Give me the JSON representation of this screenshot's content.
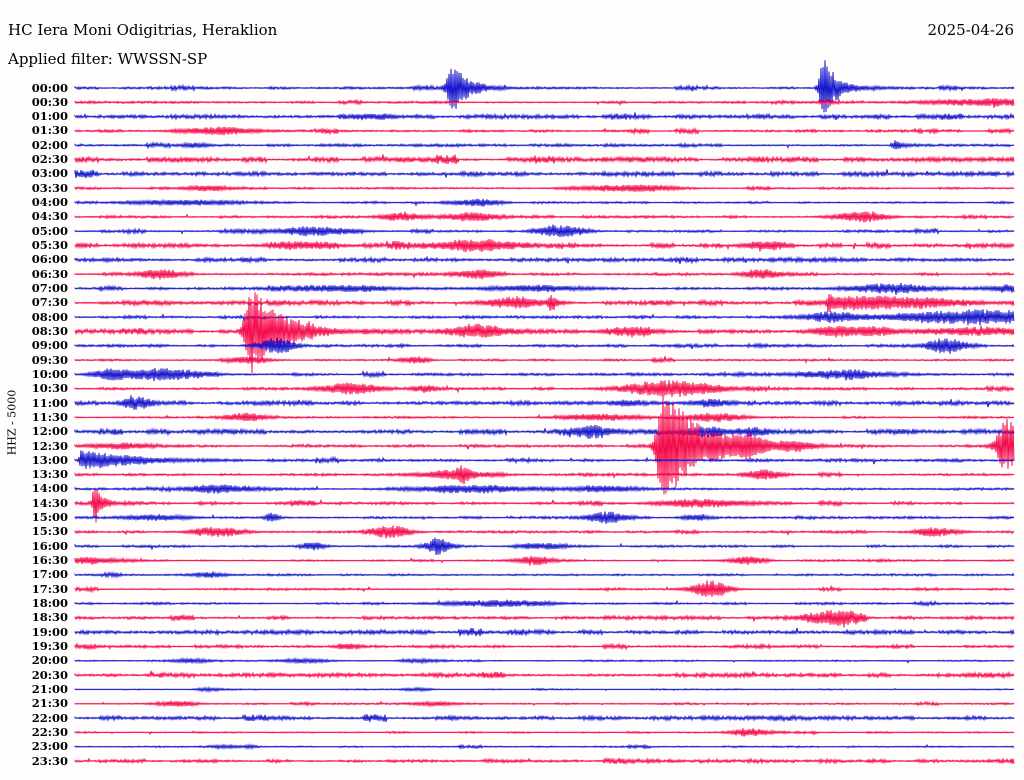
{
  "header": {
    "title": "HC Iera Moni Odigitrias, Heraklion",
    "date": "2025-04-26",
    "filter": "Applied filter: WWSSN-SP"
  },
  "y_axis": {
    "label": "HHZ - 5000"
  },
  "colors": {
    "blue": "#1414cc",
    "red": "#f50a4b",
    "text": "#000000",
    "background": "#fffefd"
  },
  "chart_data": {
    "type": "line",
    "subtype": "helicorder-day-plot",
    "station": "HC Iera Moni Odigitrias, Heraklion",
    "channel_scale": "HHZ - 5000",
    "filter": "WWSSN-SP",
    "date": "2025-04-26",
    "minutes_per_row": 30,
    "row_color_alternation": [
      "blue",
      "red"
    ],
    "legend": "none",
    "grid": "off",
    "event_note": "amp in px of trace deflection, t/w/attack/decay in minutes within the 30-min row",
    "rows": [
      {
        "time": "00:00",
        "color": "blue",
        "noise": 0.8,
        "events": [
          {
            "t": 12.1,
            "amp": 24,
            "type": "quake",
            "attack": 0.16,
            "decay": 0.5
          },
          {
            "t": 23.9,
            "amp": 32,
            "type": "quake",
            "attack": 0.1,
            "decay": 0.45
          }
        ]
      },
      {
        "time": "00:30",
        "color": "red",
        "noise": 0.7,
        "events": [
          {
            "t": 29.1,
            "amp": 3.5,
            "type": "burst",
            "w": 1.3
          }
        ]
      },
      {
        "time": "01:00",
        "color": "blue",
        "noise": 1.3,
        "events": [
          {
            "t": 9.7,
            "amp": 2,
            "type": "burst",
            "w": 0.5
          }
        ]
      },
      {
        "time": "01:30",
        "color": "red",
        "noise": 0.75,
        "events": [
          {
            "t": 4.6,
            "amp": 3.5,
            "type": "burst",
            "w": 0.9
          }
        ]
      },
      {
        "time": "02:00",
        "color": "blue",
        "noise": 0.9,
        "events": [
          {
            "t": 3.9,
            "amp": 2.5,
            "type": "burst",
            "w": 0.3
          },
          {
            "t": 26.2,
            "amp": 5,
            "type": "quake",
            "attack": 0.08,
            "decay": 0.3
          }
        ]
      },
      {
        "time": "02:30",
        "color": "red",
        "noise": 1.0,
        "ragged": 1.8,
        "events": []
      },
      {
        "time": "03:00",
        "color": "blue",
        "noise": 1.3,
        "events": []
      },
      {
        "time": "03:30",
        "color": "red",
        "noise": 0.6,
        "events": [
          {
            "t": 4.2,
            "amp": 2.5,
            "type": "burst",
            "w": 0.6
          },
          {
            "t": 17.0,
            "amp": 2.5,
            "type": "burst",
            "w": 0.9
          },
          {
            "t": 18.4,
            "amp": 2.5,
            "type": "burst",
            "w": 0.7
          }
        ]
      },
      {
        "time": "04:00",
        "color": "blue",
        "noise": 0.7,
        "events": [
          {
            "t": 3.5,
            "amp": 2.5,
            "type": "burst",
            "w": 1.2
          },
          {
            "t": 12.9,
            "amp": 3.5,
            "type": "burst",
            "w": 0.5
          }
        ]
      },
      {
        "time": "04:30",
        "color": "red",
        "noise": 0.8,
        "events": [
          {
            "t": 10.4,
            "amp": 4,
            "type": "burst",
            "w": 0.5
          },
          {
            "t": 12.6,
            "amp": 4,
            "type": "burst",
            "w": 0.6
          },
          {
            "t": 25.1,
            "amp": 5,
            "type": "burst",
            "w": 0.6
          }
        ]
      },
      {
        "time": "05:00",
        "color": "blue",
        "noise": 0.7,
        "events": [
          {
            "t": 7.7,
            "amp": 4.5,
            "type": "burst",
            "w": 0.9
          },
          {
            "t": 15.6,
            "amp": 6,
            "type": "burst",
            "w": 0.5
          }
        ]
      },
      {
        "time": "05:30",
        "color": "red",
        "noise": 1.0,
        "ragged": 1.6,
        "events": [
          {
            "t": 7.2,
            "amp": 3,
            "type": "burst",
            "w": 0.8
          },
          {
            "t": 12.7,
            "amp": 6,
            "type": "burst",
            "w": 0.9
          },
          {
            "t": 22.0,
            "amp": 4,
            "type": "burst",
            "w": 0.5
          }
        ]
      },
      {
        "time": "06:00",
        "color": "blue",
        "noise": 1.3,
        "events": []
      },
      {
        "time": "06:30",
        "color": "red",
        "noise": 0.85,
        "events": [
          {
            "t": 2.7,
            "amp": 5,
            "type": "burst",
            "w": 0.5
          },
          {
            "t": 12.9,
            "amp": 4,
            "type": "burst",
            "w": 0.5
          },
          {
            "t": 21.9,
            "amp": 4.5,
            "type": "burst",
            "w": 0.45
          }
        ]
      },
      {
        "time": "07:00",
        "color": "blue",
        "noise": 0.8,
        "events": [
          {
            "t": 8.6,
            "amp": 3,
            "type": "burst",
            "w": 1.2
          },
          {
            "t": 14.7,
            "amp": 3,
            "type": "burst",
            "w": 1.2
          },
          {
            "t": 26.1,
            "amp": 5,
            "type": "burst",
            "w": 1.0
          },
          {
            "t": 29.8,
            "amp": 4,
            "type": "burst",
            "w": 0.4
          }
        ]
      },
      {
        "time": "07:30",
        "color": "red",
        "noise": 1.0,
        "ragged": 1.6,
        "events": [
          {
            "t": 14.0,
            "amp": 5,
            "type": "burst",
            "w": 0.7
          },
          {
            "t": 15.2,
            "amp": 9,
            "type": "quake",
            "attack": 0.06,
            "decay": 0.2
          },
          {
            "t": 24.1,
            "amp": 8,
            "type": "quake",
            "attack": 0.06,
            "decay": 0.3
          },
          {
            "t": 25.2,
            "amp": 5,
            "type": "burst",
            "w": 0.8
          },
          {
            "t": 26.9,
            "amp": 5,
            "type": "burst",
            "w": 1.0
          }
        ]
      },
      {
        "time": "08:00",
        "color": "blue",
        "noise": 0.9,
        "events": [
          {
            "t": 24.2,
            "amp": 5,
            "type": "burst",
            "w": 0.7
          },
          {
            "t": 28.8,
            "amp": 7,
            "type": "burst",
            "w": 1.8
          }
        ]
      },
      {
        "time": "08:30",
        "color": "red",
        "noise": 1.0,
        "ragged": 1.5,
        "events": [
          {
            "t": 5.6,
            "amp": 46,
            "type": "quake",
            "attack": 0.13,
            "decay": 0.95
          },
          {
            "t": 12.9,
            "amp": 6,
            "type": "burst",
            "w": 0.6
          },
          {
            "t": 17.8,
            "amp": 4,
            "type": "burst",
            "w": 0.7
          },
          {
            "t": 24.3,
            "amp": 5,
            "type": "burst",
            "w": 0.5
          },
          {
            "t": 25.5,
            "amp": 4,
            "type": "burst",
            "w": 0.5
          },
          {
            "t": 28.9,
            "amp": 3,
            "type": "burst",
            "w": 1.2
          }
        ]
      },
      {
        "time": "09:00",
        "color": "blue",
        "noise": 0.9,
        "events": [
          {
            "t": 6.5,
            "amp": 8,
            "type": "burst",
            "w": 0.4
          },
          {
            "t": 27.8,
            "amp": 8,
            "type": "burst",
            "w": 0.45
          }
        ]
      },
      {
        "time": "09:30",
        "color": "red",
        "noise": 0.6,
        "events": [
          {
            "t": 5.6,
            "amp": 3,
            "type": "burst",
            "w": 0.5
          },
          {
            "t": 10.9,
            "amp": 3.5,
            "type": "burst",
            "w": 0.3
          }
        ]
      },
      {
        "time": "10:00",
        "color": "blue",
        "noise": 0.8,
        "events": [
          {
            "t": 1.1,
            "amp": 4,
            "type": "burst",
            "w": 0.4
          },
          {
            "t": 2.7,
            "amp": 6,
            "type": "burst",
            "w": 1.0
          },
          {
            "t": 24.5,
            "amp": 4,
            "type": "burst",
            "w": 1.1
          }
        ]
      },
      {
        "time": "10:30",
        "color": "red",
        "noise": 0.8,
        "events": [
          {
            "t": 8.8,
            "amp": 5.5,
            "type": "burst",
            "w": 0.7
          },
          {
            "t": 11.2,
            "amp": 3,
            "type": "burst",
            "w": 0.3
          },
          {
            "t": 19.0,
            "amp": 8,
            "type": "burst",
            "w": 1.1
          }
        ]
      },
      {
        "time": "11:00",
        "color": "blue",
        "noise": 1.25,
        "events": [
          {
            "t": 2.0,
            "amp": 5,
            "type": "burst",
            "w": 0.4
          },
          {
            "t": 17.7,
            "amp": 3,
            "type": "burst",
            "w": 0.4
          },
          {
            "t": 20.3,
            "amp": 3,
            "type": "burst",
            "w": 0.5
          }
        ]
      },
      {
        "time": "11:30",
        "color": "red",
        "noise": 0.6,
        "events": [
          {
            "t": 5.4,
            "amp": 4,
            "type": "burst",
            "w": 0.45
          },
          {
            "t": 16.8,
            "amp": 3,
            "type": "burst",
            "w": 1.0
          },
          {
            "t": 20.4,
            "amp": 4.5,
            "type": "burst",
            "w": 0.7
          }
        ]
      },
      {
        "time": "12:00",
        "color": "blue",
        "noise": 1.2,
        "ragged": 1.4,
        "events": [
          {
            "t": 16.7,
            "amp": 4,
            "type": "burst",
            "w": 0.5
          },
          {
            "t": 20.0,
            "amp": 4,
            "type": "burst",
            "w": 0.7
          },
          {
            "t": 21.6,
            "amp": 3,
            "type": "burst",
            "w": 0.4
          }
        ]
      },
      {
        "time": "12:30",
        "color": "red",
        "noise": 0.9,
        "events": [
          {
            "t": 1.4,
            "amp": 3,
            "type": "burst",
            "w": 0.7
          },
          {
            "t": 18.8,
            "amp": 60,
            "type": "quake",
            "attack": 0.16,
            "decay": 1.1
          },
          {
            "t": 21.5,
            "amp": 9,
            "type": "burst",
            "w": 0.4
          },
          {
            "t": 23.0,
            "amp": 5,
            "type": "burst",
            "w": 0.4
          },
          {
            "t": 29.8,
            "amp": 28,
            "type": "burst",
            "w": 0.25
          }
        ]
      },
      {
        "time": "13:00",
        "color": "blue",
        "noise": 0.9,
        "events": [
          {
            "t": 0.2,
            "amp": 10,
            "type": "quake",
            "attack": 0.05,
            "decay": 1.6
          }
        ]
      },
      {
        "time": "13:30",
        "color": "red",
        "noise": 0.8,
        "events": [
          {
            "t": 12.1,
            "amp": 4,
            "type": "burst",
            "w": 0.8
          },
          {
            "t": 12.4,
            "amp": 6,
            "type": "burst",
            "w": 0.15
          },
          {
            "t": 22.0,
            "amp": 5,
            "type": "burst",
            "w": 0.4
          }
        ]
      },
      {
        "time": "14:00",
        "color": "blue",
        "noise": 0.7,
        "events": [
          {
            "t": 4.6,
            "amp": 4,
            "type": "burst",
            "w": 0.8
          },
          {
            "t": 12.6,
            "amp": 4,
            "type": "burst",
            "w": 1.3
          },
          {
            "t": 16.8,
            "amp": 3,
            "type": "burst",
            "w": 0.8
          }
        ]
      },
      {
        "time": "14:30",
        "color": "red",
        "noise": 0.9,
        "events": [
          {
            "t": 0.64,
            "amp": 22,
            "type": "quake",
            "attack": 0.06,
            "decay": 0.25
          },
          {
            "t": 20.0,
            "amp": 3.5,
            "type": "burst",
            "w": 1.0
          }
        ]
      },
      {
        "time": "15:00",
        "color": "blue",
        "noise": 0.7,
        "events": [
          {
            "t": 2.6,
            "amp": 3,
            "type": "burst",
            "w": 0.8
          },
          {
            "t": 6.3,
            "amp": 5,
            "type": "burst",
            "w": 0.15
          },
          {
            "t": 17.0,
            "amp": 6,
            "type": "burst",
            "w": 0.45
          },
          {
            "t": 19.8,
            "amp": 3,
            "type": "burst",
            "w": 0.3
          }
        ]
      },
      {
        "time": "15:30",
        "color": "red",
        "noise": 0.7,
        "events": [
          {
            "t": 4.6,
            "amp": 5,
            "type": "burst",
            "w": 0.6
          },
          {
            "t": 10.1,
            "amp": 6,
            "type": "burst",
            "w": 0.45
          },
          {
            "t": 27.6,
            "amp": 4,
            "type": "burst",
            "w": 0.5
          }
        ]
      },
      {
        "time": "16:00",
        "color": "blue",
        "noise": 0.7,
        "events": [
          {
            "t": 7.6,
            "amp": 4,
            "type": "burst",
            "w": 0.3
          },
          {
            "t": 11.6,
            "amp": 8,
            "type": "burst",
            "w": 0.3
          },
          {
            "t": 15.0,
            "amp": 3,
            "type": "burst",
            "w": 0.6
          }
        ]
      },
      {
        "time": "16:30",
        "color": "red",
        "noise": 0.55,
        "events": [
          {
            "t": 0.5,
            "amp": 3,
            "type": "burst",
            "w": 0.8
          },
          {
            "t": 14.7,
            "amp": 4.5,
            "type": "burst",
            "w": 0.4
          },
          {
            "t": 21.5,
            "amp": 4,
            "type": "burst",
            "w": 0.4
          }
        ]
      },
      {
        "time": "17:00",
        "color": "blue",
        "noise": 0.65,
        "events": [
          {
            "t": 4.5,
            "amp": 1.5,
            "type": "burst",
            "w": 0.4
          }
        ]
      },
      {
        "time": "17:30",
        "color": "red",
        "noise": 0.55,
        "events": [
          {
            "t": 20.3,
            "amp": 8,
            "type": "burst",
            "w": 0.45
          }
        ]
      },
      {
        "time": "18:00",
        "color": "blue",
        "noise": 0.7,
        "events": [
          {
            "t": 13.6,
            "amp": 3,
            "type": "burst",
            "w": 1.2
          }
        ]
      },
      {
        "time": "18:30",
        "color": "red",
        "noise": 0.8,
        "ragged": 1.5,
        "events": [
          {
            "t": 24.3,
            "amp": 8,
            "type": "burst",
            "w": 0.5
          }
        ]
      },
      {
        "time": "19:00",
        "color": "blue",
        "noise": 1.25,
        "events": []
      },
      {
        "time": "19:30",
        "color": "red",
        "noise": 0.7,
        "ragged": 1.4,
        "events": [
          {
            "t": 8.7,
            "amp": 2,
            "type": "burst",
            "w": 0.3
          }
        ]
      },
      {
        "time": "20:00",
        "color": "blue",
        "noise": 0.5,
        "events": [
          {
            "t": 3.7,
            "amp": 2,
            "type": "burst",
            "w": 0.4
          },
          {
            "t": 7.4,
            "amp": 2,
            "type": "burst",
            "w": 0.5
          },
          {
            "t": 11.0,
            "amp": 2,
            "type": "burst",
            "w": 0.4
          }
        ]
      },
      {
        "time": "20:30",
        "color": "red",
        "noise": 1.25,
        "events": []
      },
      {
        "time": "21:00",
        "color": "blue",
        "noise": 0.4,
        "events": [
          {
            "t": 4.3,
            "amp": 1.5,
            "type": "burst",
            "w": 0.3
          },
          {
            "t": 11.0,
            "amp": 1.5,
            "type": "burst",
            "w": 0.3
          }
        ]
      },
      {
        "time": "21:30",
        "color": "red",
        "noise": 0.5,
        "events": [
          {
            "t": 3.2,
            "amp": 2.5,
            "type": "burst",
            "w": 0.5
          },
          {
            "t": 11.5,
            "amp": 2,
            "type": "burst",
            "w": 0.5
          }
        ]
      },
      {
        "time": "22:00",
        "color": "blue",
        "noise": 1.25,
        "events": []
      },
      {
        "time": "22:30",
        "color": "red",
        "noise": 0.5,
        "events": [
          {
            "t": 21.6,
            "amp": 4,
            "type": "burst",
            "w": 0.4
          }
        ]
      },
      {
        "time": "23:00",
        "color": "blue",
        "noise": 0.5,
        "events": [
          {
            "t": 4.8,
            "amp": 1.5,
            "type": "burst",
            "w": 0.3
          },
          {
            "t": 5.6,
            "amp": 1.5,
            "type": "burst",
            "w": 0.2
          }
        ]
      },
      {
        "time": "23:30",
        "color": "red",
        "noise": 0.85,
        "ragged": 1.5,
        "events": []
      }
    ]
  }
}
